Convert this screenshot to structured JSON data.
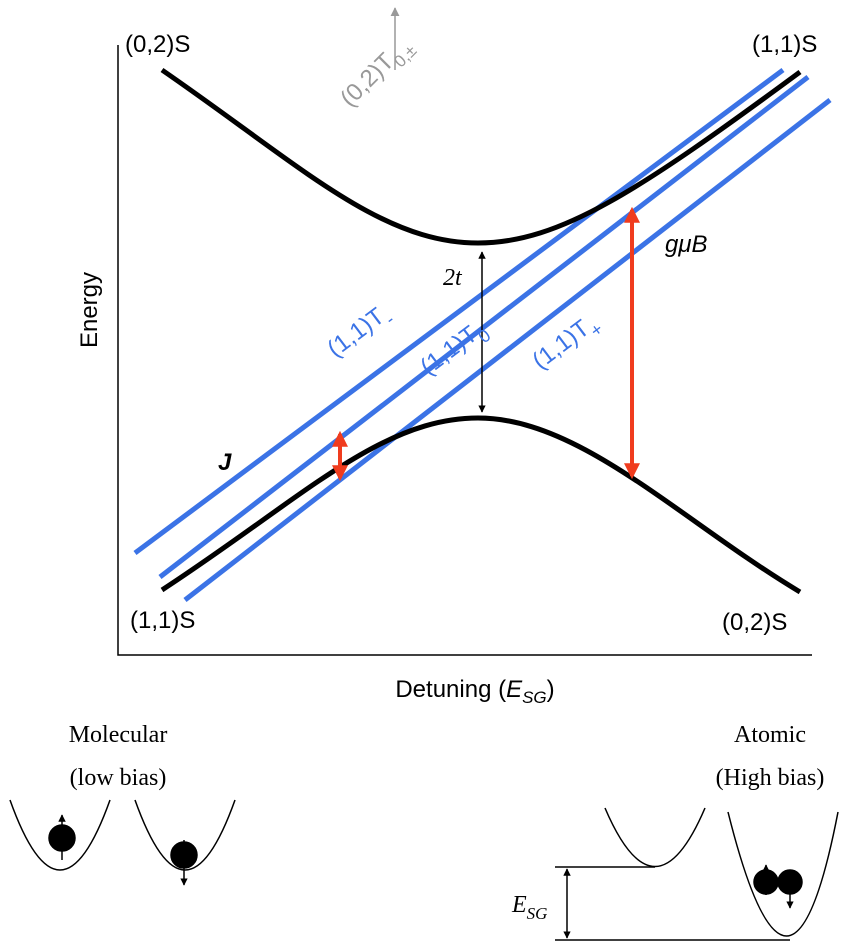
{
  "plot": {
    "top_left_state": "(0,2)S",
    "top_right_state": "(1,1)S",
    "bottom_left_state": "(1,1)S",
    "bottom_right_state": "(0,2)S",
    "high_triplet": {
      "main": "(0,2)T",
      "sub": "0,±"
    },
    "y_label": "Energy",
    "x_label": {
      "main": "Detuning (",
      "symbol": "E",
      "sub": "SG",
      "end": ")"
    },
    "gap_label": "2t",
    "zeeman_label": "gμB",
    "exchange_label": "J",
    "triplets": [
      {
        "main": "(1,1)T",
        "sub": "-"
      },
      {
        "main": "(1,1)T",
        "sub": "0"
      },
      {
        "main": "(1,1)T",
        "sub": "+"
      }
    ]
  },
  "molecular": {
    "title": "Molecular",
    "subtitle": "(low bias)"
  },
  "atomic": {
    "title": "Atomic",
    "subtitle": "(High bias)",
    "energy": {
      "symbol": "E",
      "sub": "SG"
    }
  }
}
